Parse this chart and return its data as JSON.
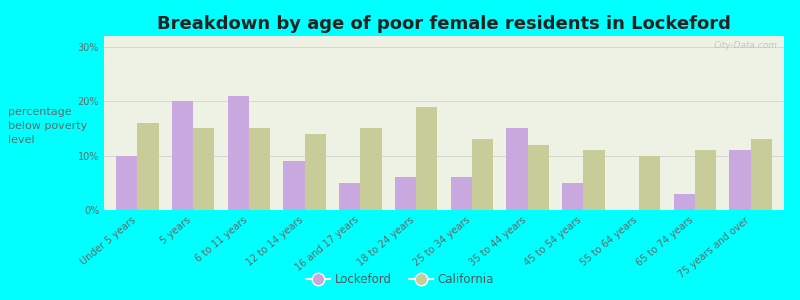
{
  "title": "Breakdown by age of poor female residents in Lockeford",
  "ylabel": "percentage\nbelow poverty\nlevel",
  "categories": [
    "Under 5 years",
    "5 years",
    "6 to 11 years",
    "12 to 14 years",
    "16 and 17 years",
    "18 to 24 years",
    "25 to 34 years",
    "35 to 44 years",
    "45 to 54 years",
    "55 to 64 years",
    "65 to 74 years",
    "75 years and over"
  ],
  "lockeford_values": [
    10,
    20,
    21,
    9,
    5,
    6,
    6,
    15,
    5,
    0,
    3,
    11
  ],
  "california_values": [
    16,
    15,
    15,
    14,
    15,
    19,
    13,
    12,
    11,
    10,
    11,
    13
  ],
  "lockeford_color": "#c9a8e0",
  "california_color": "#c8cc99",
  "background_color": "#00ffff",
  "plot_bg_color": "#eef2e4",
  "ylim": [
    0,
    32
  ],
  "yticks": [
    0,
    10,
    20,
    30
  ],
  "ytick_labels": [
    "0%",
    "10%",
    "20%",
    "30%"
  ],
  "title_fontsize": 13,
  "axis_label_fontsize": 8,
  "tick_label_fontsize": 7,
  "legend_lockeford": "Lockeford",
  "legend_california": "California",
  "bar_width": 0.38,
  "watermark": "City-Data.com"
}
